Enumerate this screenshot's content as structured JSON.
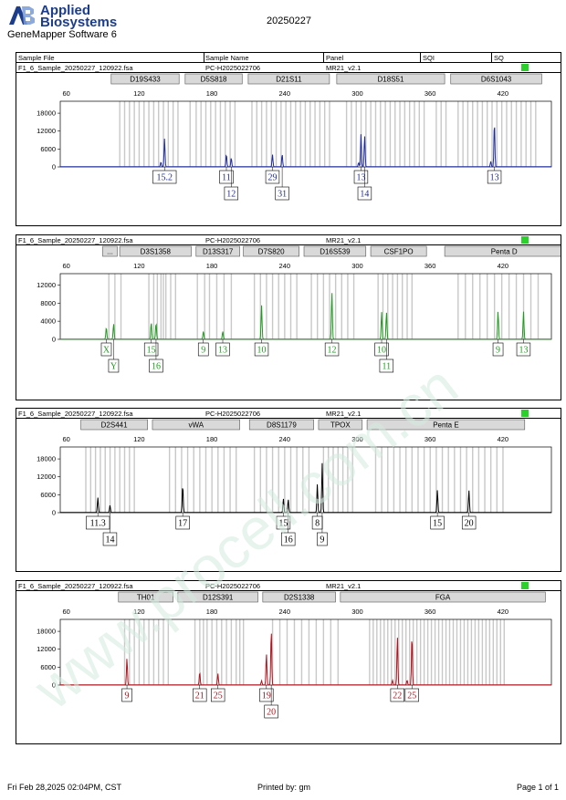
{
  "header": {
    "brand_line1": "Applied",
    "brand_line2": "Biosystems",
    "software": "GeneMapper Software 6",
    "report_date": "20250227",
    "logo_mark": "AB"
  },
  "columns": {
    "sample_file": "Sample File",
    "sample_name": "Sample Name",
    "panel": "Panel",
    "sqi": "SQI",
    "sq": "SQ"
  },
  "footer": {
    "printed_at": "Fri Feb 28,2025 02:04PM, CST",
    "printed_by": "Printed by: gm",
    "page": "Page 1 of 1"
  },
  "watermark": {
    "text": "www.procell.com.cn",
    "color": "#d4ece0"
  },
  "colors": {
    "blue": "#1f2c9c",
    "green": "#1f9c1f",
    "black": "#000000",
    "red": "#b0141e",
    "bin": "#c8c8c8",
    "quality": "#2bd12b"
  },
  "chart_data": [
    {
      "type": "line",
      "dye": "blue",
      "sample_file": "F1_6_Sample_20250227_120922.fsa",
      "sample_name": "PC-H2025022706",
      "panel": "MR21_v2.1",
      "xticks": [
        60,
        120,
        180,
        240,
        300,
        360,
        420
      ],
      "xlim": [
        55,
        460
      ],
      "yticks": [
        0,
        6000,
        12000,
        18000
      ],
      "ylim": [
        0,
        22000
      ],
      "markers": [
        {
          "name": "D19S433",
          "x1": 97,
          "x2": 153
        },
        {
          "name": "D5S818",
          "x1": 158,
          "x2": 205
        },
        {
          "name": "D21S11",
          "x1": 210,
          "x2": 277
        },
        {
          "name": "D18S51",
          "x1": 283,
          "x2": 372
        },
        {
          "name": "D6S1043",
          "x1": 377,
          "x2": 452
        }
      ],
      "bins": [
        104,
        108,
        112,
        116,
        120,
        124,
        128,
        132,
        136,
        140,
        144,
        148,
        152,
        162,
        167,
        171,
        175,
        179,
        183,
        187,
        191,
        195,
        199,
        213,
        217,
        221,
        225,
        229,
        233,
        237,
        241,
        245,
        249,
        253,
        257,
        261,
        265,
        269,
        273,
        277,
        291,
        295,
        299,
        303,
        307,
        311,
        315,
        319,
        323,
        327,
        331,
        335,
        339,
        343,
        347,
        351,
        355,
        365,
        369,
        373,
        383,
        387,
        391,
        395,
        399,
        403,
        407,
        411,
        415,
        419,
        423,
        427,
        431,
        435,
        439,
        443,
        447
      ],
      "peaks": [
        {
          "x": 141,
          "h": 9500,
          "allele": "15.2",
          "row": 0
        },
        {
          "x": 138,
          "h": 1600,
          "allele": "",
          "row": 0
        },
        {
          "x": 192,
          "h": 4200,
          "allele": "11",
          "row": 0
        },
        {
          "x": 196,
          "h": 3000,
          "allele": "12",
          "row": 1
        },
        {
          "x": 230,
          "h": 4100,
          "allele": "29",
          "row": 0
        },
        {
          "x": 238,
          "h": 4200,
          "allele": "31",
          "row": 1
        },
        {
          "x": 303,
          "h": 11000,
          "allele": "13",
          "row": 0
        },
        {
          "x": 306,
          "h": 10500,
          "allele": "14",
          "row": 1
        },
        {
          "x": 301,
          "h": 1400,
          "allele": "",
          "row": 0
        },
        {
          "x": 413,
          "h": 15000,
          "allele": "13",
          "row": 0
        },
        {
          "x": 410,
          "h": 1800,
          "allele": "",
          "row": 0
        }
      ]
    },
    {
      "type": "line",
      "dye": "green",
      "sample_file": "F1_6_Sample_20250227_120922.fsa",
      "sample_name": "PC-H2025022706",
      "panel": "MR21_v2.1",
      "xticks": [
        60,
        120,
        180,
        240,
        300,
        360,
        420
      ],
      "xlim": [
        55,
        460
      ],
      "yticks": [
        0,
        4000,
        8000,
        12000
      ],
      "ylim": [
        0,
        14500
      ],
      "markers": [
        {
          "name": "...",
          "x1": 90,
          "x2": 102
        },
        {
          "name": "D3S1358",
          "x1": 104,
          "x2": 163
        },
        {
          "name": "D13S317",
          "x1": 167,
          "x2": 203
        },
        {
          "name": "D7S820",
          "x1": 206,
          "x2": 252
        },
        {
          "name": "D16S539",
          "x1": 256,
          "x2": 307
        },
        {
          "name": "CSF1PO",
          "x1": 311,
          "x2": 357
        },
        {
          "name": "Penta D",
          "x1": 372,
          "x2": 470
        }
      ],
      "bins": [
        95,
        100,
        105,
        128,
        132,
        135,
        138,
        140,
        142,
        146,
        150,
        168,
        174,
        178,
        184,
        190,
        196,
        215,
        220,
        225,
        230,
        235,
        240,
        245,
        250,
        262,
        267,
        272,
        277,
        282,
        287,
        292,
        297,
        317,
        321,
        325,
        329,
        333,
        337,
        341,
        345,
        383,
        389,
        395,
        401,
        407,
        413,
        419,
        425,
        431,
        437,
        443,
        449
      ],
      "peaks": [
        {
          "x": 93,
          "h": 2600,
          "allele": "X",
          "row": 0
        },
        {
          "x": 99,
          "h": 3400,
          "allele": "Y",
          "row": 1
        },
        {
          "x": 130,
          "h": 3700,
          "allele": "15",
          "row": 0
        },
        {
          "x": 134,
          "h": 3600,
          "allele": "16",
          "row": 1
        },
        {
          "x": 173,
          "h": 1700,
          "allele": "9",
          "row": 0
        },
        {
          "x": 189,
          "h": 1700,
          "allele": "13",
          "row": 0
        },
        {
          "x": 221,
          "h": 7500,
          "allele": "10",
          "row": 0
        },
        {
          "x": 279,
          "h": 10500,
          "allele": "12",
          "row": 0
        },
        {
          "x": 320,
          "h": 6000,
          "allele": "10",
          "row": 0
        },
        {
          "x": 324,
          "h": 6000,
          "allele": "11",
          "row": 1
        },
        {
          "x": 416,
          "h": 6200,
          "allele": "9",
          "row": 0
        },
        {
          "x": 437,
          "h": 6100,
          "allele": "13",
          "row": 0
        }
      ]
    },
    {
      "type": "line",
      "dye": "black",
      "sample_file": "F1_6_Sample_20250227_120922.fsa",
      "sample_name": "PC-H2025022706",
      "panel": "MR21_v2.1",
      "xticks": [
        60,
        120,
        180,
        240,
        300,
        360,
        420
      ],
      "xlim": [
        55,
        460
      ],
      "yticks": [
        0,
        6000,
        12000,
        18000
      ],
      "ylim": [
        0,
        22000
      ],
      "markers": [
        {
          "name": "D2S441",
          "x1": 72,
          "x2": 127
        },
        {
          "name": "vWA",
          "x1": 131,
          "x2": 203
        },
        {
          "name": "D8S1179",
          "x1": 211,
          "x2": 264
        },
        {
          "name": "TPOX",
          "x1": 268,
          "x2": 304
        },
        {
          "name": "Penta E",
          "x1": 308,
          "x2": 438
        }
      ],
      "bins": [
        76,
        80,
        84,
        88,
        92,
        96,
        100,
        104,
        108,
        112,
        116,
        145,
        150,
        155,
        160,
        165,
        170,
        175,
        180,
        185,
        190,
        195,
        200,
        215,
        220,
        225,
        230,
        235,
        240,
        245,
        250,
        255,
        260,
        272,
        276,
        280,
        284,
        288,
        292,
        296,
        315,
        320,
        325,
        330,
        335,
        340,
        345,
        350,
        355,
        360,
        365,
        370,
        375,
        380,
        385,
        390,
        395,
        400,
        405,
        410,
        415,
        420
      ],
      "peaks": [
        {
          "x": 86,
          "h": 5000,
          "allele": "11.3",
          "row": 0
        },
        {
          "x": 96,
          "h": 2400,
          "allele": "14",
          "row": 1
        },
        {
          "x": 156,
          "h": 9200,
          "allele": "17",
          "row": 0
        },
        {
          "x": 239,
          "h": 4600,
          "allele": "15",
          "row": 0
        },
        {
          "x": 243,
          "h": 4400,
          "allele": "16",
          "row": 1
        },
        {
          "x": 267,
          "h": 9500,
          "allele": "8",
          "row": 0
        },
        {
          "x": 271,
          "h": 16500,
          "allele": "9",
          "row": 1
        },
        {
          "x": 366,
          "h": 7500,
          "allele": "15",
          "row": 0
        },
        {
          "x": 392,
          "h": 7400,
          "allele": "20",
          "row": 0
        }
      ]
    },
    {
      "type": "line",
      "dye": "red",
      "sample_file": "F1_6_Sample_20250227_120922.fsa",
      "sample_name": "PC-H2025022706",
      "panel": "MR21_v2.1",
      "xticks": [
        60,
        120,
        180,
        240,
        300,
        360,
        420
      ],
      "xlim": [
        55,
        460
      ],
      "yticks": [
        0,
        6000,
        12000,
        18000
      ],
      "ylim": [
        0,
        22000
      ],
      "markers": [
        {
          "name": "TH01",
          "x1": 103,
          "x2": 148
        },
        {
          "name": "D12S391",
          "x1": 152,
          "x2": 218
        },
        {
          "name": "D2S1338",
          "x1": 222,
          "x2": 282
        },
        {
          "name": "FGA",
          "x1": 286,
          "x2": 455
        }
      ],
      "bins": [
        108,
        112,
        116,
        120,
        124,
        128,
        132,
        136,
        140,
        144,
        166,
        170,
        173,
        176,
        180,
        184,
        188,
        192,
        196,
        200,
        203,
        206,
        230,
        236,
        242,
        248,
        254,
        260,
        266,
        272,
        278,
        284,
        310,
        313,
        316,
        319,
        322,
        325,
        328,
        331,
        334,
        337,
        340,
        343,
        346,
        349,
        352,
        355,
        358,
        361,
        364,
        367,
        370,
        373,
        376,
        379,
        382,
        385,
        388,
        391,
        394,
        397,
        400,
        403,
        406,
        409,
        412,
        415,
        418,
        421
      ],
      "peaks": [
        {
          "x": 110,
          "h": 9000,
          "allele": "9",
          "row": 0
        },
        {
          "x": 170,
          "h": 4300,
          "allele": "21",
          "row": 0
        },
        {
          "x": 185,
          "h": 3800,
          "allele": "25",
          "row": 0
        },
        {
          "x": 225,
          "h": 10500,
          "allele": "19",
          "row": 0
        },
        {
          "x": 229,
          "h": 18500,
          "allele": "20",
          "row": 1
        },
        {
          "x": 221,
          "h": 1400,
          "allele": "",
          "row": 0
        },
        {
          "x": 333,
          "h": 16300,
          "allele": "22",
          "row": 0
        },
        {
          "x": 345,
          "h": 16600,
          "allele": "25",
          "row": 0
        },
        {
          "x": 329,
          "h": 1500,
          "allele": "",
          "row": 0
        },
        {
          "x": 341,
          "h": 1600,
          "allele": "",
          "row": 0
        }
      ]
    }
  ]
}
